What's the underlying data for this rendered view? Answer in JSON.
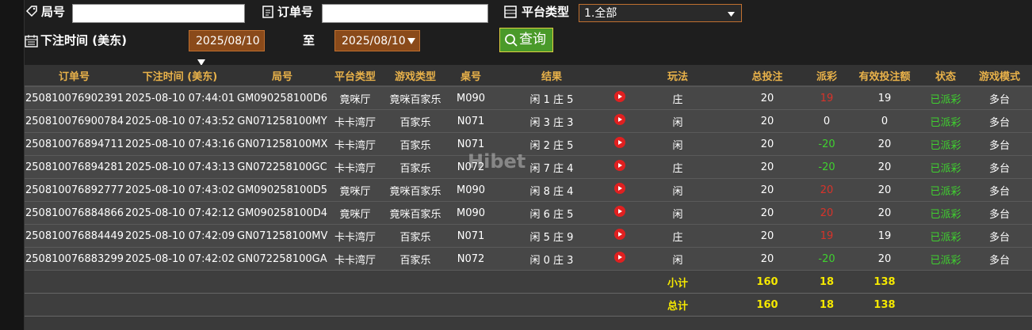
{
  "filters": {
    "round_label": "局号",
    "order_label": "订单号",
    "platform_label": "平台类型",
    "platform_value": "1.全部",
    "time_label": "下注时间 (美东)",
    "date_from": "2025/08/10",
    "to_label": "至",
    "date_to": "2025/08/10",
    "search_button": "查询"
  },
  "watermark": "Hibet",
  "table": {
    "headers": [
      "订单号",
      "下注时间 (美东)",
      "局号",
      "平台类型",
      "游戏类型",
      "桌号",
      "结果",
      "玩法",
      "总投注",
      "派彩",
      "有效投注额",
      "状态",
      "游戏模式"
    ],
    "rows": [
      {
        "order": "250810076902391",
        "time": "2025-08-10 07:44:01",
        "round": "GM090258100D6",
        "platform": "竟咪厅",
        "game": "竟咪百家乐",
        "table": "M090",
        "result": "闲 1 庄 5",
        "play": "庄",
        "bet": 20,
        "payout": 19,
        "payout_color": "#d8332a",
        "valid": 19,
        "status": "已派彩",
        "mode": "多台"
      },
      {
        "order": "250810076900784",
        "time": "2025-08-10 07:43:52",
        "round": "GN071258100MY",
        "platform": "卡卡湾厅",
        "game": "百家乐",
        "table": "N071",
        "result": "闲 3 庄 3",
        "play": "闲",
        "bet": 20,
        "payout": 0,
        "payout_color": "#ffffff",
        "valid": 0,
        "status": "已派彩",
        "mode": "多台"
      },
      {
        "order": "250810076894711",
        "time": "2025-08-10 07:43:16",
        "round": "GN071258100MX",
        "platform": "卡卡湾厅",
        "game": "百家乐",
        "table": "N071",
        "result": "闲 2 庄 5",
        "play": "闲",
        "bet": 20,
        "payout": -20,
        "payout_color": "#3fd12f",
        "valid": 20,
        "status": "已派彩",
        "mode": "多台"
      },
      {
        "order": "250810076894281",
        "time": "2025-08-10 07:43:13",
        "round": "GN072258100GC",
        "platform": "卡卡湾厅",
        "game": "百家乐",
        "table": "N072",
        "result": "闲 7 庄 4",
        "play": "庄",
        "bet": 20,
        "payout": -20,
        "payout_color": "#3fd12f",
        "valid": 20,
        "status": "已派彩",
        "mode": "多台"
      },
      {
        "order": "250810076892777",
        "time": "2025-08-10 07:43:02",
        "round": "GM090258100D5",
        "platform": "竟咪厅",
        "game": "竟咪百家乐",
        "table": "M090",
        "result": "闲 8 庄 4",
        "play": "闲",
        "bet": 20,
        "payout": 20,
        "payout_color": "#d8332a",
        "valid": 20,
        "status": "已派彩",
        "mode": "多台"
      },
      {
        "order": "250810076884866",
        "time": "2025-08-10 07:42:12",
        "round": "GM090258100D4",
        "platform": "竟咪厅",
        "game": "竟咪百家乐",
        "table": "M090",
        "result": "闲 6 庄 5",
        "play": "闲",
        "bet": 20,
        "payout": 20,
        "payout_color": "#d8332a",
        "valid": 20,
        "status": "已派彩",
        "mode": "多台"
      },
      {
        "order": "250810076884449",
        "time": "2025-08-10 07:42:09",
        "round": "GN071258100MV",
        "platform": "卡卡湾厅",
        "game": "百家乐",
        "table": "N071",
        "result": "闲 5 庄 9",
        "play": "庄",
        "bet": 20,
        "payout": 19,
        "payout_color": "#d8332a",
        "valid": 19,
        "status": "已派彩",
        "mode": "多台"
      },
      {
        "order": "250810076883299",
        "time": "2025-08-10 07:42:02",
        "round": "GN072258100GA",
        "platform": "卡卡湾厅",
        "game": "百家乐",
        "table": "N072",
        "result": "闲 0 庄 3",
        "play": "闲",
        "bet": 20,
        "payout": -20,
        "payout_color": "#3fd12f",
        "valid": 20,
        "status": "已派彩",
        "mode": "多台"
      }
    ],
    "summary": [
      {
        "label": "小计",
        "bet": 160,
        "payout": 18,
        "valid": 138
      },
      {
        "label": "总计",
        "bet": 160,
        "payout": 18,
        "valid": 138
      }
    ]
  }
}
